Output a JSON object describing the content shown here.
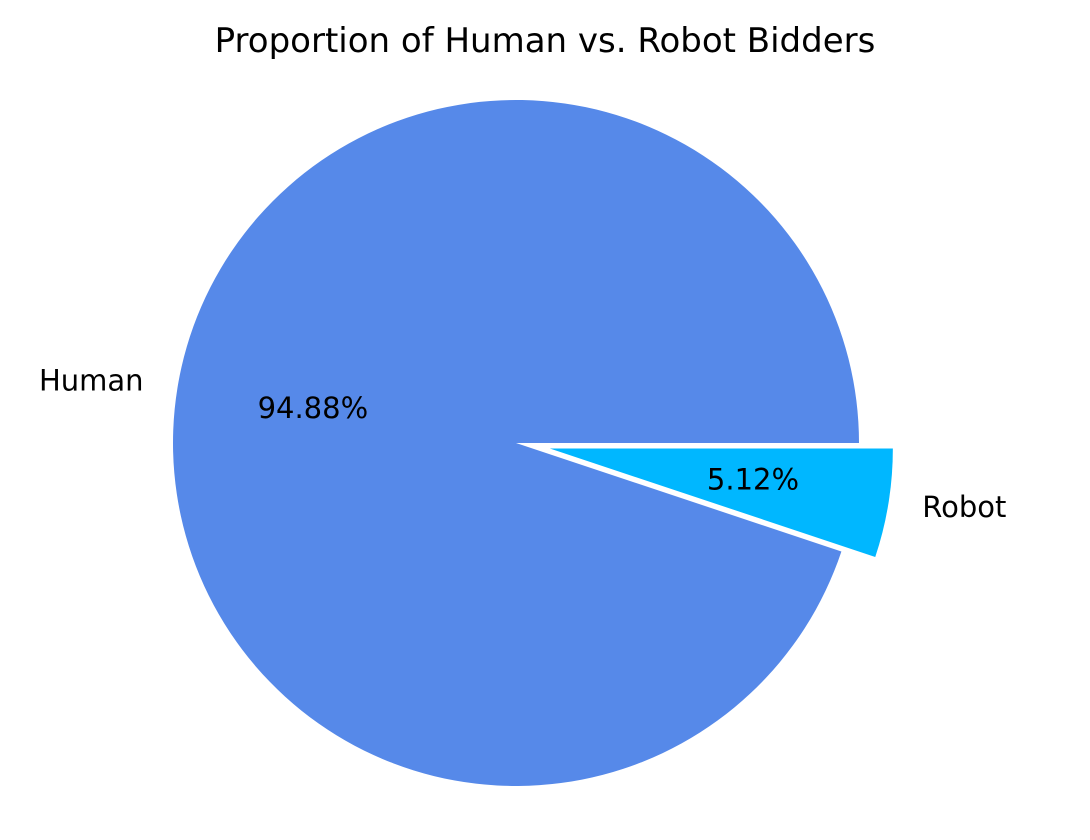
{
  "chart_data": {
    "type": "pie",
    "title": "Proportion of Human vs. Robot Bidders",
    "start_angle_deg": 0,
    "direction": "counterclockwise",
    "slices": [
      {
        "label": "Human",
        "value": 94.88,
        "pct_label": "94.88%",
        "color": "#5689E9",
        "explode": 0
      },
      {
        "label": "Robot",
        "value": 5.12,
        "pct_label": "5.12%",
        "color": "#00B7FF",
        "explode": 0.1
      }
    ]
  }
}
